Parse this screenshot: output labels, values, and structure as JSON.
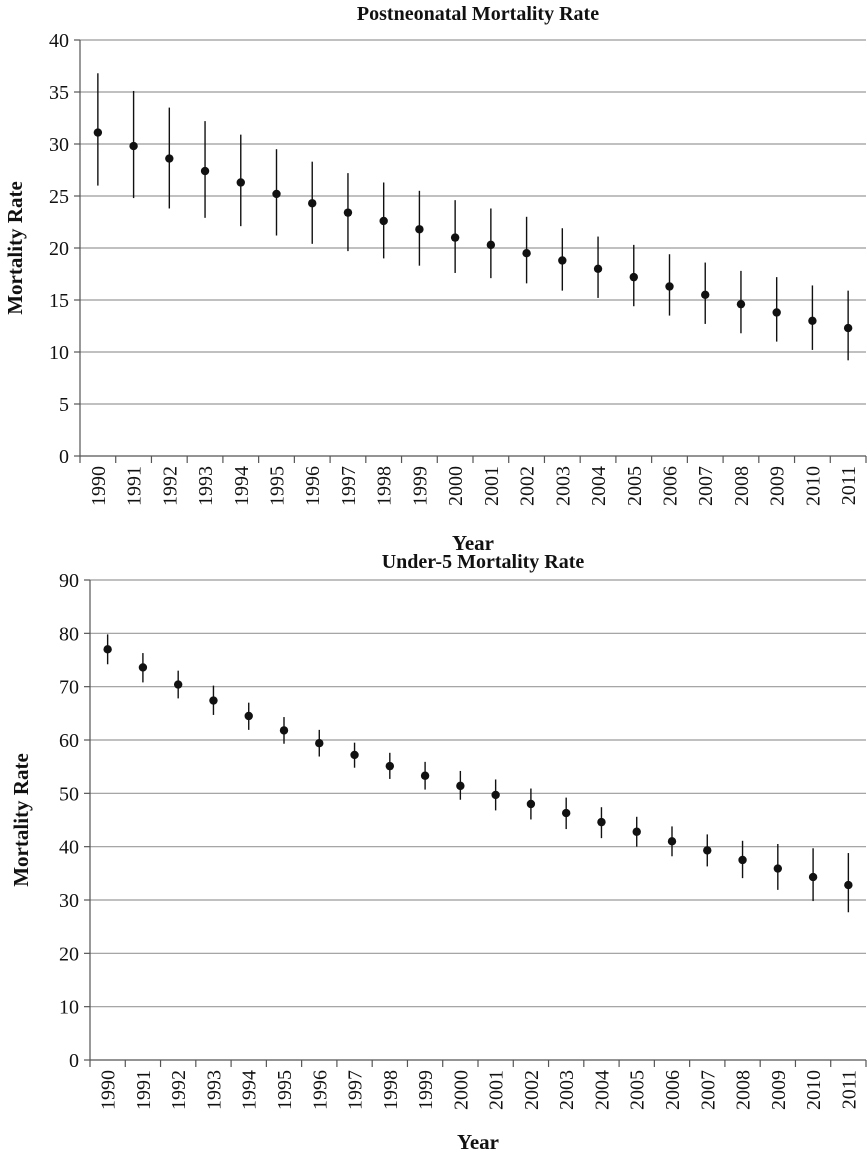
{
  "chart_data": [
    {
      "type": "scatter",
      "error_bars": true,
      "title": "Postneonatal Mortality Rate",
      "xlabel": "Year",
      "ylabel": "Mortality Rate",
      "ylim": [
        0,
        40
      ],
      "yticks": [
        0,
        5,
        10,
        15,
        20,
        25,
        30,
        35,
        40
      ],
      "grid": "horizontal",
      "categories": [
        "1990",
        "1991",
        "1992",
        "1993",
        "1994",
        "1995",
        "1996",
        "1997",
        "1998",
        "1999",
        "2000",
        "2001",
        "2002",
        "2003",
        "2004",
        "2005",
        "2006",
        "2007",
        "2008",
        "2009",
        "2010",
        "2011"
      ],
      "values": [
        31.1,
        29.8,
        28.6,
        27.4,
        26.3,
        25.2,
        24.3,
        23.4,
        22.6,
        21.8,
        21.0,
        20.3,
        19.5,
        18.8,
        18.0,
        17.2,
        16.3,
        15.5,
        14.6,
        13.8,
        13.0,
        12.3
      ],
      "lower": [
        26.0,
        24.8,
        23.8,
        22.9,
        22.1,
        21.2,
        20.4,
        19.7,
        19.0,
        18.3,
        17.6,
        17.1,
        16.6,
        15.9,
        15.2,
        14.4,
        13.5,
        12.7,
        11.8,
        11.0,
        10.2,
        9.2
      ],
      "upper": [
        36.8,
        35.1,
        33.5,
        32.2,
        30.9,
        29.5,
        28.3,
        27.2,
        26.3,
        25.5,
        24.6,
        23.8,
        23.0,
        21.9,
        21.1,
        20.3,
        19.4,
        18.6,
        17.8,
        17.2,
        16.4,
        15.9
      ]
    },
    {
      "type": "scatter",
      "error_bars": true,
      "title": "Under-5 Mortality Rate",
      "xlabel": "Year",
      "ylabel": "Mortality Rate",
      "ylim": [
        0,
        90
      ],
      "yticks": [
        0,
        10,
        20,
        30,
        40,
        50,
        60,
        70,
        80,
        90
      ],
      "grid": "horizontal",
      "categories": [
        "1990",
        "1991",
        "1992",
        "1993",
        "1994",
        "1995",
        "1996",
        "1997",
        "1998",
        "1999",
        "2000",
        "2001",
        "2002",
        "2003",
        "2004",
        "2005",
        "2006",
        "2007",
        "2008",
        "2009",
        "2010",
        "2011"
      ],
      "values": [
        77.0,
        73.6,
        70.4,
        67.4,
        64.5,
        61.8,
        59.4,
        57.2,
        55.1,
        53.3,
        51.4,
        49.7,
        48.0,
        46.3,
        44.6,
        42.8,
        41.0,
        39.3,
        37.5,
        35.9,
        34.3,
        32.8
      ],
      "lower": [
        74.2,
        70.8,
        67.8,
        64.7,
        61.9,
        59.3,
        56.9,
        54.8,
        52.7,
        50.7,
        48.8,
        46.8,
        45.1,
        43.3,
        41.6,
        40.0,
        38.2,
        36.3,
        34.1,
        31.9,
        29.8,
        27.7
      ],
      "upper": [
        79.8,
        76.3,
        73.0,
        70.2,
        67.0,
        64.3,
        61.9,
        59.5,
        57.6,
        55.9,
        54.2,
        52.6,
        50.9,
        49.2,
        47.4,
        45.6,
        43.8,
        42.3,
        41.1,
        40.5,
        39.7,
        38.8
      ]
    }
  ]
}
